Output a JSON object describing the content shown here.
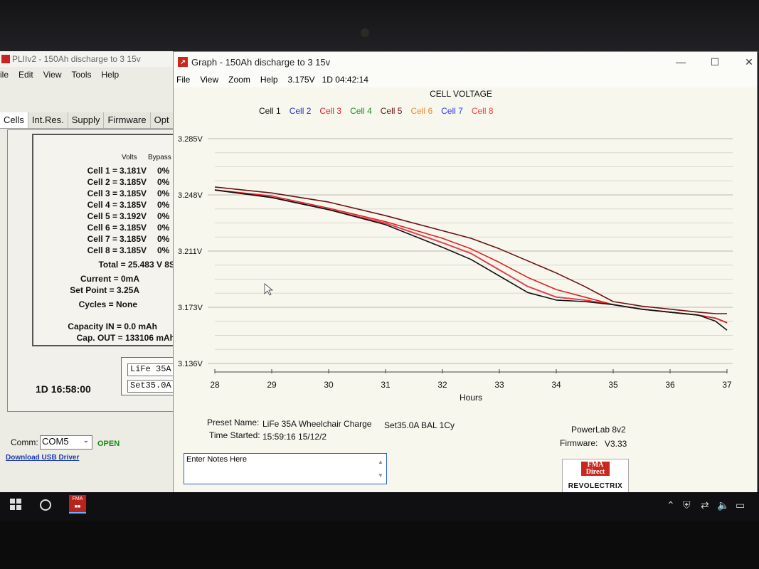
{
  "powerlab": {
    "title": "PLIIv2 - 150Ah discharge to 3 15v",
    "menu": [
      "ile",
      "Edit",
      "View",
      "Tools",
      "Help"
    ],
    "tabs": [
      "Cells",
      "Int.Res.",
      "Supply",
      "Firmware",
      "Opt"
    ],
    "col_volts": "Volts",
    "col_bypass": "Bypass",
    "cells": [
      {
        "label": "Cell 1 =",
        "volts": "3.181V",
        "bypass": "0%"
      },
      {
        "label": "Cell 2 =",
        "volts": "3.185V",
        "bypass": "0%"
      },
      {
        "label": "Cell 3 =",
        "volts": "3.185V",
        "bypass": "0%"
      },
      {
        "label": "Cell 4 =",
        "volts": "3.185V",
        "bypass": "0%"
      },
      {
        "label": "Cell 5 =",
        "volts": "3.192V",
        "bypass": "0%"
      },
      {
        "label": "Cell 6 =",
        "volts": "3.185V",
        "bypass": "0%"
      },
      {
        "label": "Cell 7 =",
        "volts": "3.185V",
        "bypass": "0%"
      },
      {
        "label": "Cell 8 =",
        "volts": "3.185V",
        "bypass": "0%"
      }
    ],
    "total": "Total = 25.483 V  8S",
    "current": "Current = 0mA",
    "set_point": "Set Point = 3.25A",
    "cycles": "Cycles = None",
    "capacity_in": "Capacity IN = 0.0 mAh",
    "cap_out": "Cap. OUT = 133106 mAh",
    "preset1": "LiFe 35A",
    "preset2": "Set35.0A",
    "elapsed": "1D 16:58:00",
    "comm_label": "Comm:",
    "comm_value": "COM5",
    "comm_status": "OPEN",
    "usb_link": "Download USB Driver"
  },
  "graph": {
    "title": "Graph - 150Ah discharge to 3 15v",
    "menu": [
      "File",
      "View",
      "Zoom",
      "Help"
    ],
    "status_voltage": "3.175V",
    "status_time": "1D 04:42:14",
    "preset_label": "Preset Name:",
    "preset_value": "LiFe 35A Wheelchair Charge",
    "preset_mode": "Set35.0A BAL 1Cy",
    "time_label": "Time Started:",
    "time_value": "15:59:16  15/12/2",
    "device": "PowerLab 8v2",
    "firmware_label": "Firmware:",
    "firmware_value": "V3.33",
    "notes_placeholder": "Enter Notes Here",
    "logo_top": "FMA Direct",
    "logo_bottom": "REVOLECTRIX"
  },
  "chart_data": {
    "type": "line",
    "title": "CELL VOLTAGE",
    "xlabel": "Hours",
    "ylabel": "",
    "x_ticks": [
      28,
      29,
      30,
      31,
      32,
      33,
      34,
      35,
      36,
      37
    ],
    "y_ticks": [
      "3.285V",
      "3.248V",
      "3.211V",
      "3.173V",
      "3.136V"
    ],
    "xlim": [
      28,
      37
    ],
    "ylim": [
      3.136,
      3.285
    ],
    "grid": true,
    "legend_position": "top",
    "series": [
      {
        "name": "Cell 1",
        "color": "#111111",
        "x": [
          28,
          29,
          30,
          31,
          32,
          32.5,
          33,
          33.5,
          34,
          34.5,
          35,
          35.5,
          36,
          36.5,
          36.8,
          37
        ],
        "y": [
          3.251,
          3.246,
          3.238,
          3.228,
          3.213,
          3.205,
          3.194,
          3.183,
          3.178,
          3.177,
          3.175,
          3.172,
          3.17,
          3.168,
          3.164,
          3.158
        ]
      },
      {
        "name": "Cell 2",
        "color": "#1f2fd0",
        "x": [
          28,
          29,
          30,
          31,
          32,
          32.5,
          33,
          33.5,
          34,
          34.5,
          35,
          35.5,
          36,
          36.5,
          36.8,
          37
        ],
        "y": [
          3.251,
          3.246,
          3.238,
          3.229,
          3.216,
          3.209,
          3.198,
          3.187,
          3.18,
          3.178,
          3.175,
          3.172,
          3.17,
          3.168,
          3.166,
          3.163
        ]
      },
      {
        "name": "Cell 3",
        "color": "#e02020",
        "x": [
          28,
          29,
          30,
          31,
          32,
          32.5,
          33,
          33.5,
          34,
          34.5,
          35,
          35.5,
          36,
          36.5,
          36.8,
          37
        ],
        "y": [
          3.251,
          3.247,
          3.239,
          3.23,
          3.219,
          3.212,
          3.203,
          3.193,
          3.185,
          3.18,
          3.175,
          3.172,
          3.17,
          3.168,
          3.166,
          3.163
        ]
      },
      {
        "name": "Cell 4",
        "color": "#1e8a2a",
        "x": [
          28,
          29,
          30,
          31,
          32,
          32.5,
          33,
          33.5,
          34,
          34.5,
          35,
          35.5,
          36,
          36.5,
          36.8,
          37
        ],
        "y": [
          3.251,
          3.246,
          3.238,
          3.229,
          3.216,
          3.209,
          3.198,
          3.187,
          3.18,
          3.178,
          3.175,
          3.172,
          3.17,
          3.168,
          3.166,
          3.163
        ]
      },
      {
        "name": "Cell 5",
        "color": "#6b1212",
        "x": [
          28,
          29,
          30,
          31,
          32,
          32.5,
          33,
          33.5,
          34,
          34.5,
          35,
          35.5,
          36,
          36.5,
          36.8,
          37
        ],
        "y": [
          3.253,
          3.249,
          3.243,
          3.234,
          3.224,
          3.219,
          3.212,
          3.204,
          3.196,
          3.187,
          3.177,
          3.174,
          3.172,
          3.17,
          3.169,
          3.169
        ]
      },
      {
        "name": "Cell 6",
        "color": "#f08a2a",
        "x": [
          28,
          29,
          30,
          31,
          32,
          32.5,
          33,
          33.5,
          34,
          34.5,
          35,
          35.5,
          36,
          36.5,
          36.8,
          37
        ],
        "y": [
          3.251,
          3.246,
          3.238,
          3.229,
          3.216,
          3.209,
          3.198,
          3.187,
          3.18,
          3.178,
          3.175,
          3.172,
          3.17,
          3.168,
          3.166,
          3.163
        ]
      },
      {
        "name": "Cell 7",
        "color": "#2a3ae8",
        "x": [
          28,
          29,
          30,
          31,
          32,
          32.5,
          33,
          33.5,
          34,
          34.5,
          35,
          35.5,
          36,
          36.5,
          36.8,
          37
        ],
        "y": [
          3.251,
          3.246,
          3.238,
          3.229,
          3.216,
          3.209,
          3.198,
          3.187,
          3.18,
          3.178,
          3.175,
          3.172,
          3.17,
          3.168,
          3.166,
          3.163
        ]
      },
      {
        "name": "Cell 8",
        "color": "#ff3a3a",
        "x": [
          28,
          29,
          30,
          31,
          32,
          32.5,
          33,
          33.5,
          34,
          34.5,
          35,
          35.5,
          36,
          36.5,
          36.8,
          37
        ],
        "y": [
          3.251,
          3.246,
          3.238,
          3.229,
          3.216,
          3.209,
          3.198,
          3.187,
          3.18,
          3.178,
          3.175,
          3.172,
          3.17,
          3.168,
          3.166,
          3.163
        ]
      }
    ]
  }
}
